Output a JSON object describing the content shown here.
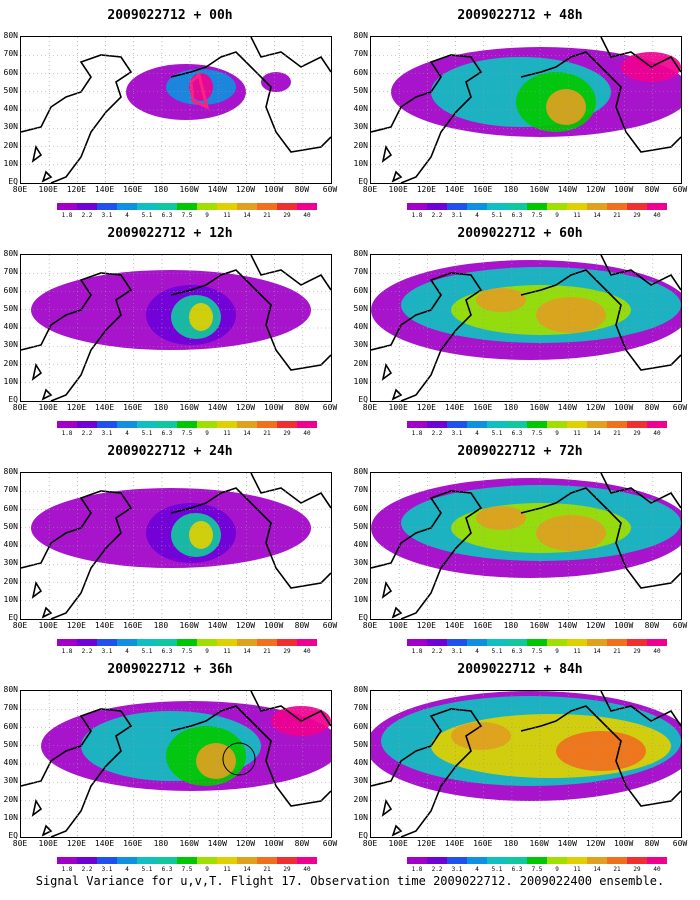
{
  "caption": "Signal Variance for u,v,T. Flight 17. Observation time 2009022712. 2009022400 ensemble.",
  "lat_labels": [
    "80N",
    "70N",
    "60N",
    "50N",
    "40N",
    "30N",
    "20N",
    "10N",
    "EQ"
  ],
  "lon_labels": [
    "80E",
    "100E",
    "120E",
    "140E",
    "160E",
    "180",
    "160W",
    "140W",
    "120W",
    "100W",
    "80W",
    "60W"
  ],
  "colorbar": {
    "labels": [
      "1.8",
      "2.2",
      "3.1",
      "4",
      "5.1",
      "6.3",
      "7.5",
      "9",
      "11",
      "14",
      "21",
      "29",
      "40"
    ],
    "colors": [
      "#a000c8",
      "#7000d8",
      "#2050f0",
      "#1090e0",
      "#10c0c0",
      "#10c8a0",
      "#00c800",
      "#a0e000",
      "#e0d000",
      "#e0a020",
      "#f07020",
      "#f03030",
      "#f00090"
    ]
  },
  "panels": [
    {
      "title": "2009022712 + 00h",
      "level": 0
    },
    {
      "title": "2009022712 + 48h",
      "level": 2
    },
    {
      "title": "2009022712 + 12h",
      "level": 1
    },
    {
      "title": "2009022712 + 60h",
      "level": 3
    },
    {
      "title": "2009022712 + 24h",
      "level": 1
    },
    {
      "title": "2009022712 + 72h",
      "level": 3
    },
    {
      "title": "2009022712 + 36h",
      "level": 2
    },
    {
      "title": "2009022712 + 84h",
      "level": 4
    }
  ]
}
